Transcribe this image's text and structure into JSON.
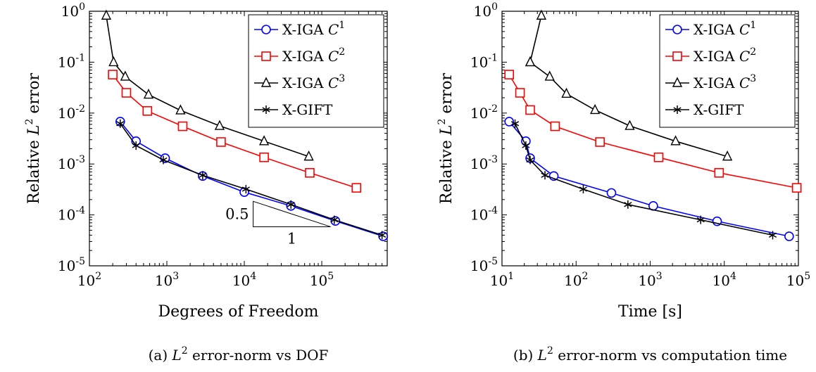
{
  "charts": [
    {
      "type": "line",
      "xlabel": "Degrees of Freedom",
      "ylabel": {
        "prefix": "Relative ",
        "base": "L",
        "sup": "2",
        "suffix": " error"
      },
      "x_scale": "log",
      "y_scale": "log",
      "xlim": [
        100,
        700000
      ],
      "ylim": [
        1e-05,
        1
      ],
      "xtick_exponents": [
        2,
        3,
        4,
        5
      ],
      "ytick_exponents": [
        -5,
        -4,
        -3,
        -2,
        -1,
        0
      ],
      "tick_base": "10",
      "caption": {
        "prefix": "(a) ",
        "base": "L",
        "sup": "2",
        "suffix": " error-norm vs DOF"
      },
      "legend": {
        "position": "top-right"
      },
      "slope_triangle": {
        "rise_label": "0.5",
        "run_label": "1"
      },
      "series": [
        {
          "name": {
            "text": "X-IGA ",
            "italic": "C",
            "sup": "1"
          },
          "color": "#0000ff",
          "marker": "circle",
          "points": [
            [
              250,
              0.0068
            ],
            [
              400,
              0.0028
            ],
            [
              950,
              0.0013
            ],
            [
              2900,
              0.00058
            ],
            [
              10000,
              0.00028
            ],
            [
              40000,
              0.00015
            ],
            [
              150000,
              7.6e-05
            ],
            [
              620000,
              3.8e-05
            ]
          ]
        },
        {
          "name": {
            "text": "X-IGA ",
            "italic": "C",
            "sup": "2"
          },
          "color": "#ff0000",
          "marker": "square",
          "points": [
            [
              200,
              0.057
            ],
            [
              300,
              0.025
            ],
            [
              560,
              0.011
            ],
            [
              1600,
              0.0055
            ],
            [
              5000,
              0.0027
            ],
            [
              18000,
              0.00135
            ],
            [
              70000,
              0.00067
            ],
            [
              280000,
              0.00034
            ]
          ]
        },
        {
          "name": {
            "text": "X-IGA ",
            "italic": "C",
            "sup": "3"
          },
          "color": "#000000",
          "marker": "triangle",
          "points": [
            [
              165,
              0.82
            ],
            [
              205,
              0.1
            ],
            [
              290,
              0.052
            ],
            [
              580,
              0.023
            ],
            [
              1500,
              0.0113
            ],
            [
              4800,
              0.0056
            ],
            [
              18000,
              0.0028
            ],
            [
              68000,
              0.0014
            ]
          ]
        },
        {
          "name": {
            "text": "X-GIFT",
            "italic": "",
            "sup": ""
          },
          "color": "#000000",
          "marker": "star",
          "points": [
            [
              250,
              0.0062
            ],
            [
              400,
              0.0023
            ],
            [
              900,
              0.0012
            ],
            [
              2900,
              0.0006
            ],
            [
              10500,
              0.00032
            ],
            [
              40000,
              0.00016
            ],
            [
              145000,
              8e-05
            ],
            [
              600000,
              4e-05
            ]
          ]
        }
      ]
    },
    {
      "type": "line",
      "xlabel": "Time [s]",
      "ylabel": {
        "prefix": "Relative ",
        "base": "L",
        "sup": "2",
        "suffix": " error"
      },
      "x_scale": "log",
      "y_scale": "log",
      "xlim": [
        10,
        100000
      ],
      "ylim": [
        1e-05,
        1
      ],
      "xtick_exponents": [
        1,
        2,
        3,
        4,
        5
      ],
      "ytick_exponents": [
        -5,
        -4,
        -3,
        -2,
        -1,
        0
      ],
      "tick_base": "10",
      "caption": {
        "prefix": "(b) ",
        "base": "L",
        "sup": "2",
        "suffix": " error-norm vs computation time"
      },
      "legend": {
        "position": "top-right"
      },
      "series": [
        {
          "name": {
            "text": "X-IGA ",
            "italic": "C",
            "sup": "1"
          },
          "color": "#0000ff",
          "marker": "circle",
          "points": [
            [
              12.5,
              0.0068
            ],
            [
              21,
              0.0028
            ],
            [
              24,
              0.0013
            ],
            [
              50,
              0.00058
            ],
            [
              300,
              0.00027
            ],
            [
              1100,
              0.00015
            ],
            [
              8000,
              7.5e-05
            ],
            [
              75000,
              3.8e-05
            ]
          ]
        },
        {
          "name": {
            "text": "X-IGA ",
            "italic": "C",
            "sup": "2"
          },
          "color": "#ff0000",
          "marker": "square",
          "points": [
            [
              12.5,
              0.057
            ],
            [
              17.5,
              0.025
            ],
            [
              24,
              0.0115
            ],
            [
              52,
              0.0055
            ],
            [
              210,
              0.0027
            ],
            [
              1300,
              0.00135
            ],
            [
              8500,
              0.00067
            ],
            [
              95000,
              0.00034
            ]
          ]
        },
        {
          "name": {
            "text": "X-IGA ",
            "italic": "C",
            "sup": "3"
          },
          "color": "#000000",
          "marker": "triangle",
          "points": [
            [
              24,
              0.1
            ],
            [
              44,
              0.052
            ],
            [
              74,
              0.024
            ],
            [
              180,
              0.0115
            ],
            [
              530,
              0.0056
            ],
            [
              2200,
              0.0028
            ],
            [
              11000,
              0.0014
            ]
          ]
        },
        {
          "name": {
            "text": "X-GIFT",
            "italic": "",
            "sup": ""
          },
          "color": "#000000",
          "marker": "star",
          "points": [
            [
              15,
              0.0062
            ],
            [
              21,
              0.0023
            ],
            [
              24,
              0.0012
            ],
            [
              38,
              0.0006
            ],
            [
              125,
              0.00032
            ],
            [
              500,
              0.00016
            ],
            [
              4800,
              8e-05
            ],
            [
              45000,
              4e-05
            ]
          ]
        }
      ],
      "extra_segment": {
        "color": "#000000",
        "marker": "triangle",
        "points": [
          [
            24,
            0.1
          ],
          [
            34,
            0.82
          ]
        ]
      }
    }
  ]
}
